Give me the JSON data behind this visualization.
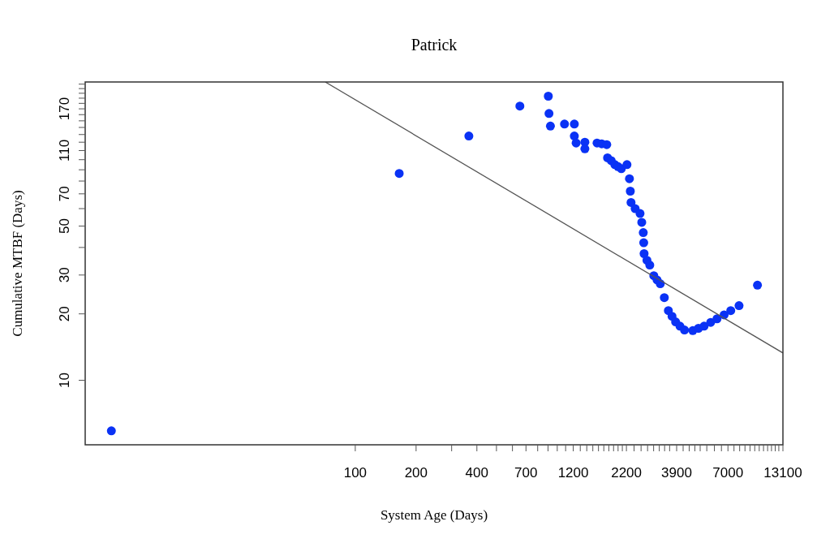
{
  "chart_data": {
    "type": "scatter",
    "title": "Patrick",
    "xlabel": "System Age (Days)",
    "ylabel": "Cumulative MTBF (Days)",
    "log": "xy",
    "xlim": [
      4.6,
      13100
    ],
    "ylim": [
      5.1,
      225
    ],
    "xticks": [
      {
        "value": 100,
        "label": "100"
      },
      {
        "value": 200,
        "label": "200"
      },
      {
        "value": 300,
        "label": null
      },
      {
        "value": 400,
        "label": "400"
      },
      {
        "value": 500,
        "label": null
      },
      {
        "value": 600,
        "label": null
      },
      {
        "value": 700,
        "label": "700"
      },
      {
        "value": 800,
        "label": null
      },
      {
        "value": 900,
        "label": null
      },
      {
        "value": 1000,
        "label": null
      },
      {
        "value": 1100,
        "label": null
      },
      {
        "value": 1200,
        "label": "1200"
      },
      {
        "value": 1300,
        "label": null
      },
      {
        "value": 1400,
        "label": null
      },
      {
        "value": 1500,
        "label": null
      },
      {
        "value": 1600,
        "label": null
      },
      {
        "value": 1700,
        "label": null
      },
      {
        "value": 1800,
        "label": null
      },
      {
        "value": 1900,
        "label": null
      },
      {
        "value": 2000,
        "label": null
      },
      {
        "value": 2100,
        "label": null
      },
      {
        "value": 2200,
        "label": "2200"
      },
      {
        "value": 2400,
        "label": null
      },
      {
        "value": 2600,
        "label": null
      },
      {
        "value": 2800,
        "label": null
      },
      {
        "value": 3000,
        "label": null
      },
      {
        "value": 3200,
        "label": null
      },
      {
        "value": 3400,
        "label": null
      },
      {
        "value": 3600,
        "label": null
      },
      {
        "value": 3900,
        "label": "3900"
      },
      {
        "value": 4200,
        "label": null
      },
      {
        "value": 4500,
        "label": null
      },
      {
        "value": 4800,
        "label": null
      },
      {
        "value": 5100,
        "label": null
      },
      {
        "value": 5500,
        "label": null
      },
      {
        "value": 6000,
        "label": null
      },
      {
        "value": 6500,
        "label": null
      },
      {
        "value": 7000,
        "label": "7000"
      },
      {
        "value": 7500,
        "label": null
      },
      {
        "value": 8000,
        "label": null
      },
      {
        "value": 8500,
        "label": null
      },
      {
        "value": 9000,
        "label": null
      },
      {
        "value": 9500,
        "label": null
      },
      {
        "value": 10000,
        "label": null
      },
      {
        "value": 10500,
        "label": null
      },
      {
        "value": 11000,
        "label": null
      },
      {
        "value": 11500,
        "label": null
      },
      {
        "value": 12000,
        "label": null
      },
      {
        "value": 12500,
        "label": null
      },
      {
        "value": 13100,
        "label": "13100"
      }
    ],
    "yticks": [
      {
        "value": 10,
        "label": "10"
      },
      {
        "value": 20,
        "label": "20"
      },
      {
        "value": 30,
        "label": "30"
      },
      {
        "value": 40,
        "label": null
      },
      {
        "value": 50,
        "label": "50"
      },
      {
        "value": 60,
        "label": null
      },
      {
        "value": 70,
        "label": "70"
      },
      {
        "value": 80,
        "label": null
      },
      {
        "value": 90,
        "label": null
      },
      {
        "value": 100,
        "label": null
      },
      {
        "value": 110,
        "label": "110"
      },
      {
        "value": 120,
        "label": null
      },
      {
        "value": 130,
        "label": null
      },
      {
        "value": 140,
        "label": null
      },
      {
        "value": 150,
        "label": null
      },
      {
        "value": 160,
        "label": null
      },
      {
        "value": 170,
        "label": "170"
      },
      {
        "value": 180,
        "label": null
      },
      {
        "value": 190,
        "label": null
      },
      {
        "value": 200,
        "label": null
      },
      {
        "value": 210,
        "label": null
      },
      {
        "value": 220,
        "label": null
      }
    ],
    "series": [
      {
        "marker": "circle",
        "color": "#0a32f5",
        "x": [
          6.2,
          165,
          365,
          653,
          903,
          910,
          925,
          1086,
          1215,
          1215,
          1240,
          1370,
          1370,
          1574,
          1660,
          1758,
          1774,
          1850,
          1928,
          2000,
          2076,
          2214,
          2277,
          2300,
          2319,
          2430,
          2570,
          2620,
          2666,
          2680,
          2691,
          2780,
          2871,
          3006,
          3120,
          3236,
          3389,
          3549,
          3700,
          3855,
          4050,
          4266,
          4688,
          5000,
          5333,
          5750,
          6180,
          6700,
          7228,
          7943,
          9800
        ],
        "values": [
          5.9,
          86.6,
          128,
          175,
          194,
          162,
          142,
          145,
          145,
          128,
          119,
          120,
          112,
          119,
          118,
          117,
          102,
          99,
          95,
          93,
          91,
          95,
          82,
          72,
          64,
          60,
          57,
          52,
          46.7,
          42,
          37.5,
          35,
          33.3,
          29.8,
          28.5,
          27.4,
          23.7,
          20.7,
          19.5,
          18.4,
          17.6,
          16.9,
          16.8,
          17.2,
          17.6,
          18.3,
          19.0,
          19.8,
          20.7,
          21.8,
          27
        ]
      },
      {
        "type": "line",
        "color": "#555555",
        "x": [
          71,
          13100
        ],
        "values": [
          225,
          13.3
        ]
      }
    ]
  }
}
